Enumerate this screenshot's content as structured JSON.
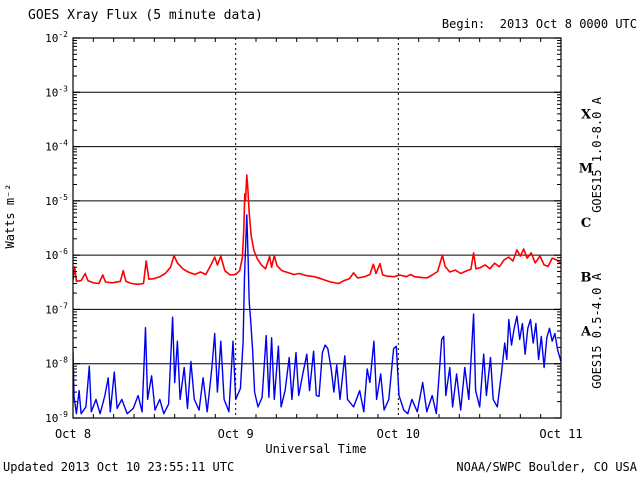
{
  "header": {
    "title": "GOES Xray Flux (5 minute data)",
    "begin_label": "Begin:  2013 Oct 8 0000 UTC"
  },
  "footer": {
    "updated": "Updated 2013 Oct 10 23:55:11 UTC",
    "source": "NOAA/SWPC Boulder, CO USA"
  },
  "colors": {
    "long_channel": "#ff0000",
    "short_channel": "#0000ee",
    "axis": "#000000",
    "background": "#ffffff"
  },
  "chart_data": {
    "type": "line",
    "title": "GOES Xray Flux (5 minute data)",
    "xlabel": "Universal Time",
    "ylabel": "Watts m⁻²",
    "x_unit_hours_since": "2013 Oct 8 0000 UTC",
    "xlim_hours": [
      0,
      72
    ],
    "y_log10_range": [
      -9,
      -2
    ],
    "grid": "horizontal solid at decades 1e-3..1e-8, vertical dashed at day boundaries",
    "legend_position": "right-side rotated labels",
    "x_ticks": [
      {
        "t": 0,
        "label": "Oct 8"
      },
      {
        "t": 24,
        "label": "Oct 9"
      },
      {
        "t": 48,
        "label": "Oct 10"
      },
      {
        "t": 72,
        "label": "Oct 11"
      }
    ],
    "minor_tick_hours": 3,
    "y_tick_exponents": [
      -2,
      -3,
      -4,
      -5,
      -6,
      -7,
      -8,
      -9
    ],
    "hgrid_exponents": [
      -3,
      -4,
      -5,
      -6,
      -7,
      -8
    ],
    "vgrid_hours": [
      24,
      48
    ],
    "flare_classes": [
      {
        "label": "X",
        "band_log10": [
          -4,
          -3
        ]
      },
      {
        "label": "M",
        "band_log10": [
          -5,
          -4
        ]
      },
      {
        "label": "C",
        "band_log10": [
          -6,
          -5
        ]
      },
      {
        "label": "B",
        "band_log10": [
          -7,
          -6
        ]
      },
      {
        "label": "A",
        "band_log10": [
          -8,
          -7
        ]
      }
    ],
    "series": [
      {
        "name": "GOES15 1.0-8.0 A",
        "axis_label": "GOES15 1.0-8.0 A",
        "color": "#ff0000",
        "points": [
          [
            0,
            3.5e-07
          ],
          [
            0.25,
            6e-07
          ],
          [
            0.5,
            3.3e-07
          ],
          [
            1.2,
            3.4e-07
          ],
          [
            1.8,
            4.6e-07
          ],
          [
            2.2,
            3.4e-07
          ],
          [
            3,
            3.1e-07
          ],
          [
            3.8,
            3e-07
          ],
          [
            4.4,
            4.3e-07
          ],
          [
            4.8,
            3.2e-07
          ],
          [
            5.8,
            3.1e-07
          ],
          [
            7,
            3.3e-07
          ],
          [
            7.4,
            5.2e-07
          ],
          [
            7.8,
            3.3e-07
          ],
          [
            8.6,
            3e-07
          ],
          [
            9.6,
            2.9e-07
          ],
          [
            10.4,
            3e-07
          ],
          [
            10.8,
            7.8e-07
          ],
          [
            11.2,
            3.6e-07
          ],
          [
            12,
            3.7e-07
          ],
          [
            12.8,
            4e-07
          ],
          [
            13.6,
            4.6e-07
          ],
          [
            14.4,
            6e-07
          ],
          [
            14.9,
            9.8e-07
          ],
          [
            15.4,
            7.2e-07
          ],
          [
            16.2,
            5.6e-07
          ],
          [
            17,
            4.9e-07
          ],
          [
            18,
            4.4e-07
          ],
          [
            18.8,
            4.9e-07
          ],
          [
            19.6,
            4.4e-07
          ],
          [
            20.4,
            6.8e-07
          ],
          [
            20.9,
            9.2e-07
          ],
          [
            21.3,
            6.6e-07
          ],
          [
            21.8,
            9.6e-07
          ],
          [
            22.4,
            5.2e-07
          ],
          [
            23.2,
            4.3e-07
          ],
          [
            24,
            4.4e-07
          ],
          [
            24.6,
            5.2e-07
          ],
          [
            25,
            9e-07
          ],
          [
            25.2,
            3e-06
          ],
          [
            25.35,
            1.35e-05
          ],
          [
            25.45,
            1e-05
          ],
          [
            25.65,
            3e-05
          ],
          [
            25.8,
            1.6e-05
          ],
          [
            26,
            6e-06
          ],
          [
            26.3,
            2.2e-06
          ],
          [
            26.7,
            1.2e-06
          ],
          [
            27.2,
            8.5e-07
          ],
          [
            27.8,
            6.6e-07
          ],
          [
            28.4,
            5.6e-07
          ],
          [
            29,
            9.5e-07
          ],
          [
            29.3,
            6e-07
          ],
          [
            29.7,
            9.8e-07
          ],
          [
            30.1,
            6.4e-07
          ],
          [
            30.8,
            5.2e-07
          ],
          [
            31.6,
            4.8e-07
          ],
          [
            32.6,
            4.4e-07
          ],
          [
            33.4,
            4.6e-07
          ],
          [
            34.4,
            4.2e-07
          ],
          [
            35.6,
            4e-07
          ],
          [
            36.8,
            3.6e-07
          ],
          [
            38,
            3.2e-07
          ],
          [
            39.2,
            3e-07
          ],
          [
            40,
            3.4e-07
          ],
          [
            40.8,
            3.7e-07
          ],
          [
            41.4,
            4.7e-07
          ],
          [
            42,
            3.8e-07
          ],
          [
            43,
            4e-07
          ],
          [
            43.8,
            4.4e-07
          ],
          [
            44.3,
            6.8e-07
          ],
          [
            44.7,
            4.6e-07
          ],
          [
            45.3,
            7e-07
          ],
          [
            45.7,
            4.3e-07
          ],
          [
            46.4,
            4.1e-07
          ],
          [
            47.4,
            4e-07
          ],
          [
            48.2,
            4.3e-07
          ],
          [
            49.2,
            4e-07
          ],
          [
            49.8,
            4.4e-07
          ],
          [
            50.4,
            4e-07
          ],
          [
            51.2,
            3.9e-07
          ],
          [
            52.2,
            3.8e-07
          ],
          [
            53,
            4.3e-07
          ],
          [
            53.8,
            5e-07
          ],
          [
            54.5,
            1e-06
          ],
          [
            54.9,
            6.2e-07
          ],
          [
            55.6,
            4.9e-07
          ],
          [
            56.4,
            5.3e-07
          ],
          [
            57.2,
            4.6e-07
          ],
          [
            58,
            5.1e-07
          ],
          [
            58.7,
            5.5e-07
          ],
          [
            59.1,
            1.1e-06
          ],
          [
            59.45,
            5.6e-07
          ],
          [
            60.1,
            5.9e-07
          ],
          [
            60.8,
            6.6e-07
          ],
          [
            61.5,
            5.6e-07
          ],
          [
            62.2,
            7.1e-07
          ],
          [
            62.9,
            6.1e-07
          ],
          [
            63.6,
            8.2e-07
          ],
          [
            64.3,
            9.2e-07
          ],
          [
            64.9,
            7.8e-07
          ],
          [
            65.5,
            1.25e-06
          ],
          [
            66,
            9.6e-07
          ],
          [
            66.5,
            1.3e-06
          ],
          [
            67,
            8.8e-07
          ],
          [
            67.6,
            1.1e-06
          ],
          [
            68.2,
            7.2e-07
          ],
          [
            68.9,
            9.6e-07
          ],
          [
            69.5,
            6.6e-07
          ],
          [
            70.1,
            6.2e-07
          ],
          [
            70.7,
            8.8e-07
          ],
          [
            71.3,
            8.2e-07
          ],
          [
            72,
            7e-07
          ]
        ]
      },
      {
        "name": "GOES15 0.5-4.0 A",
        "axis_label": "GOES15 0.5-4.0 A",
        "color": "#0000ee",
        "points": [
          [
            0,
            1.6e-08
          ],
          [
            0.15,
            2.5e-09
          ],
          [
            0.5,
            1.2e-09
          ],
          [
            0.9,
            3.2e-09
          ],
          [
            1.2,
            1.2e-09
          ],
          [
            1.9,
            1.6e-09
          ],
          [
            2.4,
            9e-09
          ],
          [
            2.7,
            1.3e-09
          ],
          [
            3.4,
            2.2e-09
          ],
          [
            4,
            1.2e-09
          ],
          [
            4.7,
            2.6e-09
          ],
          [
            5.2,
            5.5e-09
          ],
          [
            5.5,
            1.3e-09
          ],
          [
            6.1,
            7e-09
          ],
          [
            6.5,
            1.5e-09
          ],
          [
            7.2,
            2.2e-09
          ],
          [
            8,
            1.2e-09
          ],
          [
            8.9,
            1.5e-09
          ],
          [
            9.6,
            2.6e-09
          ],
          [
            10.2,
            1.3e-09
          ],
          [
            10.7,
            4.6e-08
          ],
          [
            11,
            2.2e-09
          ],
          [
            11.6,
            6e-09
          ],
          [
            12.1,
            1.4e-09
          ],
          [
            12.8,
            2.2e-09
          ],
          [
            13.4,
            1.2e-09
          ],
          [
            14.1,
            1.8e-09
          ],
          [
            14.7,
            7.2e-08
          ],
          [
            15,
            4.5e-09
          ],
          [
            15.4,
            2.6e-08
          ],
          [
            15.8,
            2.2e-09
          ],
          [
            16.4,
            8.5e-09
          ],
          [
            16.9,
            1.5e-09
          ],
          [
            17.4,
            1.1e-08
          ],
          [
            17.9,
            2.2e-09
          ],
          [
            18.6,
            1.4e-09
          ],
          [
            19.2,
            5.5e-09
          ],
          [
            19.8,
            1.3e-09
          ],
          [
            20.5,
            8.5e-09
          ],
          [
            20.9,
            3.6e-08
          ],
          [
            21.3,
            3e-09
          ],
          [
            21.8,
            2.6e-08
          ],
          [
            22.3,
            2.2e-09
          ],
          [
            23,
            1.3e-09
          ],
          [
            23.6,
            2.6e-08
          ],
          [
            24,
            2.2e-09
          ],
          [
            24.7,
            3.5e-09
          ],
          [
            25.1,
            2.5e-08
          ],
          [
            25.3,
            4e-07
          ],
          [
            25.5,
            1.8e-06
          ],
          [
            25.65,
            5.5e-06
          ],
          [
            25.8,
            1.2e-06
          ],
          [
            26,
            1.4e-07
          ],
          [
            26.2,
            6.5e-08
          ],
          [
            26.5,
            1.8e-08
          ],
          [
            26.8,
            3e-09
          ],
          [
            27.3,
            1.6e-09
          ],
          [
            27.9,
            2.4e-09
          ],
          [
            28.5,
            3.3e-08
          ],
          [
            28.9,
            2.4e-09
          ],
          [
            29.3,
            3e-08
          ],
          [
            29.7,
            2.2e-09
          ],
          [
            30.3,
            2.1e-08
          ],
          [
            30.7,
            1.6e-09
          ],
          [
            31.3,
            3.2e-09
          ],
          [
            31.9,
            1.3e-08
          ],
          [
            32.3,
            2.2e-09
          ],
          [
            32.9,
            1.6e-08
          ],
          [
            33.3,
            2.6e-09
          ],
          [
            33.9,
            6.5e-09
          ],
          [
            34.5,
            1.5e-08
          ],
          [
            34.9,
            3.2e-09
          ],
          [
            35.5,
            1.7e-08
          ],
          [
            35.9,
            2.6e-09
          ],
          [
            36.3,
            2.5e-09
          ],
          [
            36.8,
            1.6e-08
          ],
          [
            37.2,
            2.2e-08
          ],
          [
            37.6,
            1.9e-08
          ],
          [
            38.1,
            8e-09
          ],
          [
            38.5,
            3e-09
          ],
          [
            38.9,
            9.5e-09
          ],
          [
            39.4,
            2.2e-09
          ],
          [
            40.1,
            1.4e-08
          ],
          [
            40.5,
            2.2e-09
          ],
          [
            41.4,
            1.6e-09
          ],
          [
            42.3,
            3.2e-09
          ],
          [
            42.9,
            1.3e-09
          ],
          [
            43.4,
            8e-09
          ],
          [
            43.8,
            4.5e-09
          ],
          [
            44.4,
            2.6e-08
          ],
          [
            44.8,
            2.2e-09
          ],
          [
            45.4,
            6.5e-09
          ],
          [
            45.9,
            1.4e-09
          ],
          [
            46.6,
            2.2e-09
          ],
          [
            47.3,
            1.9e-08
          ],
          [
            47.7,
            2.1e-08
          ],
          [
            48.1,
            2.6e-09
          ],
          [
            48.8,
            1.4e-09
          ],
          [
            49.4,
            1.2e-09
          ],
          [
            50,
            2.2e-09
          ],
          [
            50.8,
            1.3e-09
          ],
          [
            51.6,
            4.5e-09
          ],
          [
            52.2,
            1.3e-09
          ],
          [
            53,
            2.6e-09
          ],
          [
            53.6,
            1.2e-09
          ],
          [
            54.4,
            2.8e-08
          ],
          [
            54.7,
            3.2e-08
          ],
          [
            55,
            2.6e-09
          ],
          [
            55.6,
            8.5e-09
          ],
          [
            56,
            1.6e-09
          ],
          [
            56.6,
            6.5e-09
          ],
          [
            57.2,
            1.4e-09
          ],
          [
            57.8,
            8.5e-09
          ],
          [
            58.4,
            2.2e-09
          ],
          [
            59.1,
            8.2e-08
          ],
          [
            59.4,
            3.2e-09
          ],
          [
            60,
            1.6e-09
          ],
          [
            60.6,
            1.5e-08
          ],
          [
            61,
            2.6e-09
          ],
          [
            61.6,
            1.3e-08
          ],
          [
            62,
            2.2e-09
          ],
          [
            62.6,
            1.6e-09
          ],
          [
            63.2,
            6.5e-09
          ],
          [
            63.7,
            2.4e-08
          ],
          [
            64,
            1.2e-08
          ],
          [
            64.3,
            6.5e-08
          ],
          [
            64.7,
            2.2e-08
          ],
          [
            65.1,
            4.5e-08
          ],
          [
            65.5,
            7.5e-08
          ],
          [
            65.9,
            2.8e-08
          ],
          [
            66.3,
            5.5e-08
          ],
          [
            66.7,
            1.5e-08
          ],
          [
            67.1,
            4.5e-08
          ],
          [
            67.5,
            6.5e-08
          ],
          [
            67.9,
            2.4e-08
          ],
          [
            68.3,
            5.5e-08
          ],
          [
            68.7,
            1.2e-08
          ],
          [
            69.1,
            3.2e-08
          ],
          [
            69.5,
            8.5e-09
          ],
          [
            69.9,
            3e-08
          ],
          [
            70.3,
            4.5e-08
          ],
          [
            70.7,
            2.6e-08
          ],
          [
            71.1,
            3.6e-08
          ],
          [
            71.5,
            1.8e-08
          ],
          [
            72,
            1.1e-08
          ]
        ]
      }
    ]
  }
}
